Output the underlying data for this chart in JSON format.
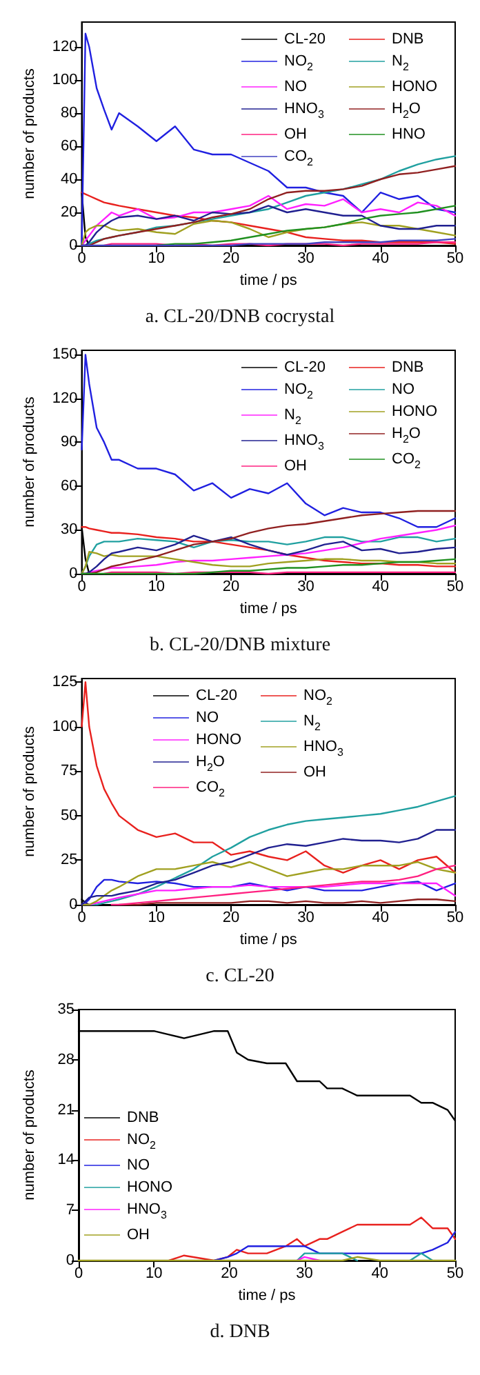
{
  "chart_data": [
    {
      "type": "line",
      "title": "a. CL-20/DNB cocrystal",
      "xlabel": "time / ps",
      "ylabel": "number of products",
      "xlim": [
        0,
        50
      ],
      "xticks": [
        0,
        10,
        20,
        30,
        40,
        50
      ],
      "ylim": [
        0,
        135
      ],
      "yticks": [
        0,
        20,
        40,
        60,
        80,
        100,
        120
      ],
      "legend": "top right",
      "grid": false,
      "marker": "none",
      "line_style": "solid",
      "x": [
        0,
        0.5,
        1,
        2,
        3,
        4,
        5,
        7.5,
        10,
        12.5,
        15,
        17.5,
        20,
        22.5,
        25,
        27.5,
        30,
        32.5,
        35,
        37.5,
        40,
        42.5,
        45,
        47.5,
        50
      ],
      "series": [
        {
          "name": "CL-20",
          "color": "#000000",
          "values": [
            32,
            5,
            0,
            null,
            null,
            null,
            null,
            null,
            null,
            null,
            null,
            null,
            null,
            null,
            null,
            null,
            null,
            null,
            null,
            null,
            null,
            null,
            null,
            null,
            null
          ]
        },
        {
          "name": "DNB",
          "color": "#e8211e",
          "values": [
            32,
            31,
            30,
            28,
            26,
            25,
            24,
            22,
            20,
            18,
            17,
            15,
            14,
            12,
            10,
            8,
            5,
            4,
            3,
            3,
            2,
            2,
            2,
            2,
            1
          ]
        },
        {
          "name": "NO$_{2}$",
          "color": "#2020e0",
          "values": [
            0,
            128,
            120,
            95,
            82,
            70,
            80,
            72,
            63,
            72,
            58,
            55,
            55,
            50,
            45,
            35,
            35,
            32,
            30,
            20,
            32,
            28,
            30,
            22,
            20
          ]
        },
        {
          "name": "N$_{2}$",
          "color": "#20a0a0",
          "values": [
            0,
            0,
            1,
            3,
            4,
            5,
            6,
            8,
            11,
            12,
            14,
            16,
            18,
            20,
            22,
            26,
            30,
            32,
            34,
            37,
            40,
            45,
            49,
            52,
            54
          ]
        },
        {
          "name": "NO",
          "color": "#ff20ff",
          "values": [
            0,
            3,
            6,
            12,
            16,
            20,
            18,
            22,
            16,
            17,
            20,
            20,
            22,
            24,
            30,
            22,
            25,
            24,
            28,
            20,
            22,
            20,
            26,
            24,
            18
          ]
        },
        {
          "name": "HONO",
          "color": "#a0a020",
          "values": [
            0,
            8,
            10,
            12,
            12,
            10,
            9,
            10,
            8,
            7,
            13,
            15,
            14,
            10,
            5,
            8,
            10,
            11,
            13,
            14,
            12,
            12,
            10,
            8,
            6
          ]
        },
        {
          "name": "HNO$_{3}$",
          "color": "#202090",
          "values": [
            0,
            0,
            2,
            8,
            12,
            15,
            17,
            18,
            16,
            18,
            15,
            20,
            19,
            20,
            24,
            20,
            22,
            20,
            18,
            18,
            12,
            10,
            10,
            12,
            12
          ]
        },
        {
          "name": "H$_{2}$O",
          "color": "#902020",
          "values": [
            0,
            0,
            0,
            2,
            4,
            5,
            6,
            8,
            10,
            12,
            14,
            17,
            19,
            22,
            28,
            32,
            33,
            33,
            34,
            36,
            40,
            43,
            44,
            46,
            48
          ]
        },
        {
          "name": "OH",
          "color": "#ff2080",
          "values": [
            null,
            null,
            null,
            null,
            0,
            1,
            1,
            1,
            1,
            0,
            1,
            0,
            1,
            1,
            0,
            1,
            1,
            1,
            0,
            1,
            1,
            1,
            1,
            2,
            2
          ]
        },
        {
          "name": "HNO",
          "color": "#209020",
          "values": [
            null,
            null,
            null,
            null,
            null,
            null,
            null,
            null,
            0,
            1,
            1,
            2,
            3,
            5,
            7,
            9,
            10,
            11,
            13,
            16,
            18,
            19,
            20,
            22,
            24
          ]
        },
        {
          "name": "CO$_{2}$",
          "color": "#4040c0",
          "values": [
            0,
            0,
            0,
            0,
            0,
            0,
            0,
            0,
            0,
            0,
            0,
            0,
            0,
            1,
            1,
            1,
            1,
            2,
            2,
            2,
            2,
            3,
            3,
            3,
            4
          ]
        }
      ]
    },
    {
      "type": "line",
      "title": "b. CL-20/DNB mixture",
      "xlabel": "time / ps",
      "ylabel": "number of products",
      "xlim": [
        0,
        50
      ],
      "xticks": [
        0,
        10,
        20,
        30,
        40,
        50
      ],
      "ylim": [
        0,
        153
      ],
      "yticks": [
        0,
        30,
        60,
        90,
        120,
        150
      ],
      "legend": "top right",
      "grid": false,
      "marker": "none",
      "line_style": "solid",
      "x": [
        0,
        0.5,
        1,
        2,
        3,
        4,
        5,
        7.5,
        10,
        12.5,
        15,
        17.5,
        20,
        22.5,
        25,
        27.5,
        30,
        32.5,
        35,
        37.5,
        40,
        42.5,
        45,
        47.5,
        50
      ],
      "series": [
        {
          "name": "CL-20",
          "color": "#000000",
          "values": [
            32,
            10,
            0,
            null,
            null,
            null,
            null,
            null,
            null,
            null,
            null,
            null,
            null,
            null,
            null,
            null,
            null,
            null,
            null,
            null,
            null,
            null,
            null,
            null,
            null
          ]
        },
        {
          "name": "DNB",
          "color": "#e8211e",
          "values": [
            32,
            32,
            31,
            30,
            29,
            28,
            28,
            27,
            25,
            24,
            22,
            22,
            20,
            18,
            16,
            13,
            11,
            9,
            8,
            7,
            7,
            6,
            6,
            5,
            5
          ]
        },
        {
          "name": "NO$_{2}$",
          "color": "#2020e0",
          "values": [
            85,
            150,
            130,
            100,
            90,
            78,
            78,
            72,
            72,
            68,
            57,
            62,
            52,
            58,
            55,
            62,
            48,
            40,
            45,
            42,
            42,
            38,
            32,
            32,
            38
          ]
        },
        {
          "name": "NO",
          "color": "#20a0a0",
          "values": [
            0,
            5,
            12,
            20,
            22,
            22,
            22,
            24,
            23,
            22,
            18,
            22,
            23,
            22,
            22,
            20,
            22,
            25,
            25,
            22,
            22,
            25,
            25,
            22,
            24
          ]
        },
        {
          "name": "N$_{2}$",
          "color": "#ff20ff",
          "values": [
            0,
            0,
            1,
            2,
            3,
            4,
            4,
            5,
            6,
            8,
            9,
            9,
            10,
            11,
            12,
            13,
            14,
            16,
            18,
            21,
            24,
            26,
            28,
            30,
            33
          ]
        },
        {
          "name": "HONO",
          "color": "#a0a020",
          "values": [
            0,
            5,
            15,
            14,
            12,
            13,
            12,
            12,
            12,
            10,
            8,
            6,
            5,
            5,
            7,
            8,
            9,
            10,
            10,
            9,
            9,
            8,
            8,
            7,
            7
          ]
        },
        {
          "name": "HNO$_{3}$",
          "color": "#202090",
          "values": [
            0,
            0,
            1,
            5,
            10,
            14,
            15,
            18,
            16,
            20,
            26,
            22,
            25,
            20,
            16,
            13,
            16,
            20,
            22,
            16,
            17,
            14,
            15,
            17,
            18
          ]
        },
        {
          "name": "H$_{2}$O",
          "color": "#902020",
          "values": [
            0,
            0,
            0,
            1,
            3,
            5,
            6,
            9,
            12,
            16,
            20,
            22,
            24,
            28,
            31,
            33,
            34,
            36,
            38,
            40,
            41,
            42,
            43,
            43,
            43
          ]
        },
        {
          "name": "OH",
          "color": "#ff2080",
          "values": [
            null,
            null,
            null,
            null,
            0,
            1,
            1,
            1,
            1,
            0,
            1,
            1,
            1,
            1,
            0,
            1,
            1,
            1,
            1,
            1,
            1,
            1,
            1,
            1,
            1
          ]
        },
        {
          "name": "CO$_{2}$",
          "color": "#209020",
          "values": [
            0,
            0,
            0,
            0,
            0,
            0,
            0,
            0,
            0,
            0,
            0,
            1,
            2,
            2,
            3,
            4,
            4,
            5,
            6,
            6,
            7,
            8,
            8,
            9,
            10
          ]
        }
      ]
    },
    {
      "type": "line",
      "title": "c. CL-20",
      "xlabel": "time / ps",
      "ylabel": "number of products",
      "xlim": [
        0,
        50
      ],
      "xticks": [
        0,
        10,
        20,
        30,
        40,
        50
      ],
      "ylim": [
        0,
        127
      ],
      "yticks": [
        0,
        25,
        50,
        75,
        100,
        125
      ],
      "legend": "top",
      "grid": false,
      "marker": "none",
      "line_style": "solid",
      "x": [
        0,
        0.5,
        1,
        2,
        3,
        4,
        5,
        7.5,
        10,
        12.5,
        15,
        17.5,
        20,
        22.5,
        25,
        27.5,
        30,
        32.5,
        35,
        37.5,
        40,
        42.5,
        45,
        47.5,
        50
      ],
      "series": [
        {
          "name": "CL-20",
          "color": "#000000",
          "values": [
            3,
            1,
            0,
            null,
            null,
            null,
            null,
            null,
            null,
            null,
            null,
            null,
            null,
            null,
            null,
            null,
            null,
            null,
            null,
            null,
            null,
            null,
            null,
            null,
            null
          ]
        },
        {
          "name": "NO$_{2}$",
          "color": "#e8211e",
          "values": [
            100,
            125,
            100,
            78,
            65,
            57,
            50,
            42,
            38,
            40,
            35,
            35,
            28,
            30,
            27,
            25,
            30,
            22,
            18,
            22,
            25,
            20,
            25,
            27,
            18
          ]
        },
        {
          "name": "NO",
          "color": "#2020e0",
          "values": [
            0,
            1,
            3,
            10,
            14,
            14,
            13,
            12,
            13,
            12,
            10,
            10,
            10,
            12,
            10,
            8,
            10,
            8,
            8,
            8,
            10,
            12,
            13,
            8,
            12
          ]
        },
        {
          "name": "N$_{2}$",
          "color": "#20a0a0",
          "values": [
            0,
            0,
            0,
            0,
            1,
            2,
            3,
            6,
            10,
            15,
            20,
            27,
            32,
            38,
            42,
            45,
            47,
            48,
            49,
            50,
            51,
            53,
            55,
            58,
            61
          ]
        },
        {
          "name": "HONO",
          "color": "#ff20ff",
          "values": [
            0,
            0,
            0,
            1,
            2,
            3,
            4,
            6,
            8,
            8,
            9,
            10,
            10,
            11,
            10,
            10,
            10,
            10,
            11,
            12,
            12,
            12,
            12,
            12,
            5
          ]
        },
        {
          "name": "HNO$_{3}$",
          "color": "#a0a020",
          "values": [
            0,
            0,
            0,
            2,
            5,
            8,
            10,
            16,
            20,
            20,
            22,
            24,
            21,
            24,
            20,
            16,
            18,
            20,
            20,
            22,
            22,
            22,
            24,
            20,
            18
          ]
        },
        {
          "name": "H$_{2}$O",
          "color": "#202090",
          "values": [
            0,
            2,
            4,
            5,
            5,
            5,
            6,
            8,
            12,
            14,
            18,
            22,
            24,
            28,
            32,
            34,
            33,
            35,
            37,
            36,
            36,
            35,
            37,
            42,
            42
          ]
        },
        {
          "name": "OH",
          "color": "#902020",
          "values": [
            null,
            null,
            null,
            null,
            null,
            null,
            0,
            0,
            1,
            1,
            1,
            1,
            1,
            2,
            2,
            1,
            2,
            1,
            1,
            2,
            1,
            2,
            3,
            3,
            2
          ]
        },
        {
          "name": "CO$_{2}$",
          "color": "#ff2080",
          "values": [
            null,
            null,
            null,
            null,
            null,
            0,
            0,
            1,
            2,
            3,
            4,
            5,
            6,
            7,
            8,
            9,
            10,
            11,
            12,
            13,
            13,
            14,
            16,
            20,
            22
          ]
        }
      ]
    },
    {
      "type": "line",
      "title": "d. DNB",
      "xlabel": "time / ps",
      "ylabel": "number of products",
      "xlim": [
        0,
        50
      ],
      "xticks": [
        0,
        10,
        20,
        30,
        40,
        50
      ],
      "ylim": [
        0,
        35
      ],
      "yticks": [
        0,
        7,
        14,
        21,
        28,
        35
      ],
      "legend": "left",
      "grid": false,
      "marker": "none",
      "line_style": "solid",
      "x": [
        0,
        10,
        12,
        14,
        18,
        19.8,
        21,
        22.5,
        25,
        27.5,
        29,
        30,
        32,
        33,
        35,
        37,
        40,
        44,
        45.5,
        47,
        49,
        50
      ],
      "series": [
        {
          "name": "DNB",
          "color": "#000000",
          "values": [
            32,
            32,
            31.5,
            31,
            32,
            32,
            29,
            28,
            27.5,
            27.5,
            25,
            25,
            25,
            24,
            24,
            23,
            23,
            23,
            22,
            22,
            21,
            19.5
          ]
        },
        {
          "name": "NO$_{2}$",
          "color": "#e8211e",
          "values": [
            null,
            null,
            0,
            0.7,
            0,
            0.5,
            1.5,
            1,
            1,
            2,
            3,
            2,
            3,
            3,
            4,
            5,
            5,
            5,
            6,
            4.5,
            4.5,
            3
          ]
        },
        {
          "name": "NO",
          "color": "#2020e0",
          "values": [
            null,
            null,
            null,
            null,
            0,
            0.5,
            1,
            2,
            2,
            2,
            2,
            2,
            1,
            1,
            1,
            1,
            1,
            1,
            1,
            1.5,
            2.5,
            4
          ]
        },
        {
          "name": "HONO",
          "color": "#20a0a0",
          "values": [
            null,
            null,
            null,
            null,
            null,
            null,
            null,
            null,
            null,
            null,
            0,
            1,
            1,
            1,
            1,
            0,
            null,
            0,
            1,
            0,
            null,
            null
          ]
        },
        {
          "name": "HNO$_{3}$",
          "color": "#ff20ff",
          "values": [
            null,
            null,
            null,
            null,
            null,
            null,
            null,
            null,
            null,
            null,
            0,
            0.5,
            0,
            null,
            null,
            null,
            null,
            null,
            null,
            null,
            null,
            null
          ]
        },
        {
          "name": "OH",
          "color": "#a0a020",
          "values": [
            0,
            0,
            0,
            0,
            0,
            0,
            0,
            0,
            0,
            0,
            0,
            0,
            0,
            0,
            0,
            0.5,
            0,
            0,
            0,
            0,
            0,
            0
          ]
        }
      ]
    }
  ]
}
